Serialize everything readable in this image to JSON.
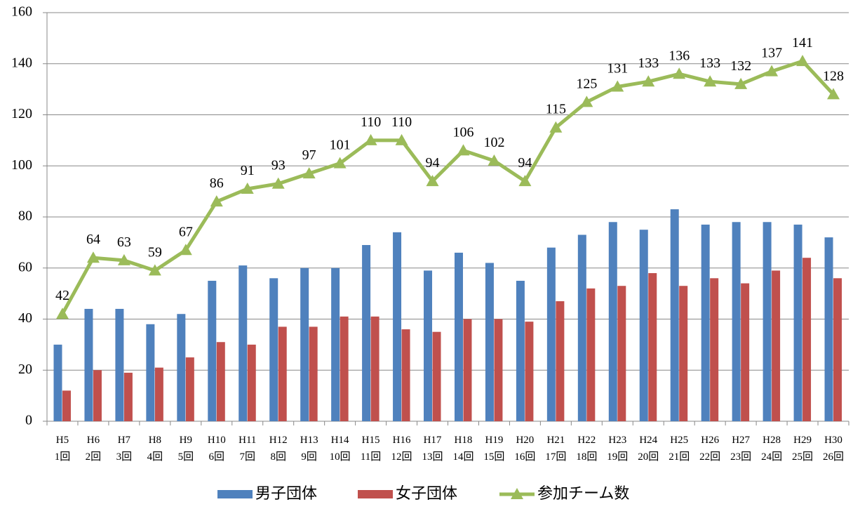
{
  "chart_data": {
    "type": "bar-line",
    "categories": [
      [
        "H5",
        "1回"
      ],
      [
        "H6",
        "2回"
      ],
      [
        "H7",
        "3回"
      ],
      [
        "H8",
        "4回"
      ],
      [
        "H9",
        "5回"
      ],
      [
        "H10",
        "6回"
      ],
      [
        "H11",
        "7回"
      ],
      [
        "H12",
        "8回"
      ],
      [
        "H13",
        "9回"
      ],
      [
        "H14",
        "10回"
      ],
      [
        "H15",
        "11回"
      ],
      [
        "H16",
        "12回"
      ],
      [
        "H17",
        "13回"
      ],
      [
        "H18",
        "14回"
      ],
      [
        "H19",
        "15回"
      ],
      [
        "H20",
        "16回"
      ],
      [
        "H21",
        "17回"
      ],
      [
        "H22",
        "18回"
      ],
      [
        "H23",
        "19回"
      ],
      [
        "H24",
        "20回"
      ],
      [
        "H25",
        "21回"
      ],
      [
        "H26",
        "22回"
      ],
      [
        "H27",
        "23回"
      ],
      [
        "H28",
        "24回"
      ],
      [
        "H29",
        "25回"
      ],
      [
        "H30",
        "26回"
      ]
    ],
    "series": [
      {
        "name": "男子団体",
        "type": "bar",
        "color": "#4f81bd",
        "values": [
          30,
          44,
          44,
          38,
          42,
          55,
          61,
          56,
          60,
          60,
          69,
          74,
          59,
          66,
          62,
          55,
          68,
          73,
          78,
          75,
          83,
          77,
          78,
          78,
          77,
          72
        ]
      },
      {
        "name": "女子団体",
        "type": "bar",
        "color": "#c0504d",
        "values": [
          12,
          20,
          19,
          21,
          25,
          31,
          30,
          37,
          37,
          41,
          41,
          36,
          35,
          40,
          40,
          39,
          47,
          52,
          53,
          58,
          53,
          56,
          54,
          59,
          64,
          56
        ]
      },
      {
        "name": "参加チーム数",
        "type": "line",
        "color": "#9bbb59",
        "values": [
          42,
          64,
          63,
          59,
          67,
          86,
          91,
          93,
          97,
          101,
          110,
          110,
          94,
          106,
          102,
          94,
          115,
          125,
          131,
          133,
          136,
          133,
          132,
          137,
          141,
          128
        ]
      }
    ],
    "ylim": [
      0,
      160
    ],
    "yticks": [
      0,
      20,
      40,
      60,
      80,
      100,
      120,
      140,
      160
    ],
    "grid": true,
    "legend": "bottom"
  }
}
